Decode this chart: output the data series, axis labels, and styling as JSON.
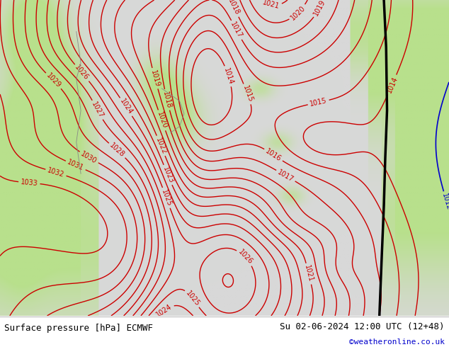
{
  "title_left": "Surface pressure [hPa] ECMWF",
  "title_right": "Su 02-06-2024 12:00 UTC (12+48)",
  "credit": "©weatheronline.co.uk",
  "credit_color": "#0000cc",
  "sea_color": "#d8d8d8",
  "land_color": "#b8e08c",
  "contour_color_red": "#cc0000",
  "contour_color_blue": "#0000cc",
  "contour_color_black": "#000000",
  "coast_color": "#888888",
  "footer_bg": "#ffffff",
  "label_fontsize": 7,
  "footer_fontsize": 9,
  "figsize": [
    6.34,
    4.9
  ],
  "dpi": 100
}
